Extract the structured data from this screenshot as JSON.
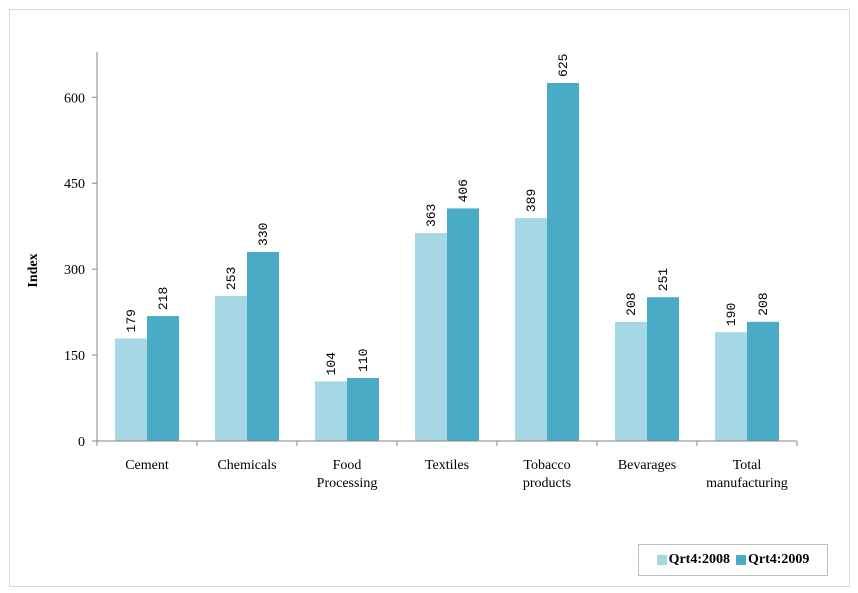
{
  "chart_data": {
    "type": "bar",
    "categories": [
      "Cement",
      "Chemicals",
      "Food\nProcessing",
      "Textiles",
      "Tobacco\nproducts",
      "Bevarages",
      "Total\nmanufacturing"
    ],
    "series": [
      {
        "name": "Qrt4:2008",
        "values": [
          179,
          253,
          104,
          363,
          389,
          208,
          190
        ],
        "color": "#a6d7e4"
      },
      {
        "name": "Qrt4:2009",
        "values": [
          218,
          330,
          110,
          406,
          625,
          251,
          208
        ],
        "color": "#4aabc6"
      }
    ],
    "ylabel": "Index",
    "xlabel": "",
    "title": "",
    "ylim": [
      0,
      700
    ],
    "yticks": [
      0,
      150,
      300,
      450,
      600
    ],
    "grid": false,
    "legend_position": "bottom-right",
    "axis_color": "#868686"
  }
}
